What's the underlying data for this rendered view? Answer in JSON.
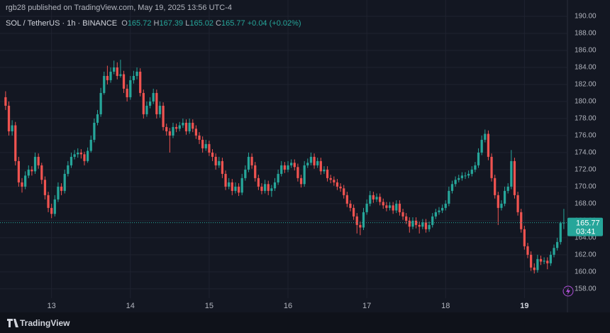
{
  "published": "rgb28 published on TradingView.com, May 19, 2025 13:56 UTC-4",
  "brand": "TradingView",
  "chart_data": {
    "type": "candlestick",
    "title": "SOL / TetherUS · 1h · BINANCE",
    "ohlc_keys": [
      "O",
      "H",
      "L",
      "C"
    ],
    "change": "+0.04 (+0.02%)",
    "countdown": "03:41",
    "up_color": "#26a69a",
    "down_color": "#ef5350",
    "grid": true,
    "xlim": [
      -1.7,
      171.1
    ],
    "xticks": [
      {
        "value": 14,
        "label": "13"
      },
      {
        "value": 38,
        "label": "14"
      },
      {
        "value": 62,
        "label": "15"
      },
      {
        "value": 86,
        "label": "16"
      },
      {
        "value": 110,
        "label": "17"
      },
      {
        "value": 134,
        "label": "18"
      },
      {
        "value": 158,
        "label": "19"
      }
    ],
    "ylim": [
      156.9,
      190.75
    ],
    "yticks": [
      {
        "value": 158,
        "label": "158.00"
      },
      {
        "value": 160,
        "label": "160.00"
      },
      {
        "value": 162,
        "label": "162.00"
      },
      {
        "value": 164,
        "label": "164.00"
      },
      {
        "value": 166,
        "label": "166.00"
      },
      {
        "value": 168,
        "label": "168.00"
      },
      {
        "value": 170,
        "label": "170.00"
      },
      {
        "value": 172,
        "label": "172.00"
      },
      {
        "value": 174,
        "label": "174.00"
      },
      {
        "value": 176,
        "label": "176.00"
      },
      {
        "value": 178,
        "label": "178.00"
      },
      {
        "value": 180,
        "label": "180.00"
      },
      {
        "value": 182,
        "label": "182.00"
      },
      {
        "value": 184,
        "label": "184.00"
      },
      {
        "value": 186,
        "label": "186.00"
      },
      {
        "value": 188,
        "label": "188.00"
      },
      {
        "value": 190,
        "label": "190.00"
      }
    ],
    "ohlc": [
      [
        180.5,
        181.2,
        179,
        179.5
      ],
      [
        179.5,
        180,
        176,
        176.5
      ],
      [
        176.5,
        177.8,
        176,
        177.2
      ],
      [
        177.2,
        177.6,
        172.5,
        173
      ],
      [
        173,
        173.5,
        170,
        170.5
      ],
      [
        170.5,
        171,
        169.3,
        170
      ],
      [
        170,
        171.8,
        169.7,
        171.3
      ],
      [
        171.3,
        172.5,
        171,
        172
      ],
      [
        172,
        172.4,
        171.3,
        171.8
      ],
      [
        171.8,
        174,
        171.5,
        173.5
      ],
      [
        173.5,
        173.9,
        172.1,
        172.5
      ],
      [
        172.5,
        172.8,
        170.3,
        170.8
      ],
      [
        170.8,
        171.2,
        168.5,
        169
      ],
      [
        169,
        169.4,
        167,
        167.5
      ],
      [
        167.5,
        168,
        166.3,
        166.8
      ],
      [
        166.8,
        169,
        166.5,
        168.5
      ],
      [
        168.5,
        170.5,
        168.2,
        170
      ],
      [
        170,
        170.4,
        169,
        169.5
      ],
      [
        169.5,
        172,
        169.2,
        171.5
      ],
      [
        171.5,
        173,
        171.2,
        172.5
      ],
      [
        172.5,
        174,
        172.2,
        173.5
      ],
      [
        173.5,
        174.3,
        173.2,
        173.8
      ],
      [
        173.8,
        174.5,
        173.4,
        174
      ],
      [
        174,
        174.4,
        173.3,
        173.8
      ],
      [
        173.8,
        174.1,
        172.5,
        173
      ],
      [
        173,
        174.6,
        172.8,
        174.2
      ],
      [
        174.2,
        176,
        174,
        175.5
      ],
      [
        175.5,
        178,
        175.2,
        177.5
      ],
      [
        177.5,
        179,
        177.2,
        178.5
      ],
      [
        178.5,
        181.6,
        178.2,
        181
      ],
      [
        181,
        183.5,
        180.8,
        183
      ],
      [
        183,
        184.2,
        182,
        182.5
      ],
      [
        182.5,
        184,
        182.2,
        183.5
      ],
      [
        183.5,
        184.8,
        183.2,
        184
      ],
      [
        184,
        184.6,
        182.6,
        183
      ],
      [
        183,
        184.9,
        182.8,
        183.2
      ],
      [
        183.2,
        183.6,
        181,
        181.5
      ],
      [
        181.5,
        182,
        180,
        180.5
      ],
      [
        180.5,
        183,
        180.2,
        182.5
      ],
      [
        182.5,
        183.6,
        182.1,
        183
      ],
      [
        183,
        184,
        182.6,
        183.5
      ],
      [
        183.5,
        183.9,
        180.6,
        181
      ],
      [
        181,
        181.4,
        178,
        178.5
      ],
      [
        178.5,
        180,
        178.2,
        179.5
      ],
      [
        179.5,
        180.5,
        179.2,
        180
      ],
      [
        180,
        181.5,
        179.7,
        181
      ],
      [
        181,
        181.4,
        178,
        178.5
      ],
      [
        178.5,
        180,
        178.1,
        179.5
      ],
      [
        179.5,
        179.9,
        176.6,
        177
      ],
      [
        177,
        177.4,
        176,
        176.5
      ],
      [
        176.5,
        176.9,
        174,
        176
      ],
      [
        176,
        177.5,
        175.7,
        177
      ],
      [
        177,
        177.4,
        176.4,
        176.8
      ],
      [
        176.8,
        177.6,
        176.5,
        177.2
      ],
      [
        177.2,
        178,
        176.9,
        177.5
      ],
      [
        177.5,
        177.9,
        176.1,
        176.5
      ],
      [
        176.5,
        178,
        176.2,
        177.5
      ],
      [
        177.5,
        177.9,
        176.4,
        176.8
      ],
      [
        176.8,
        177.2,
        175.6,
        176
      ],
      [
        176,
        176.4,
        175,
        175.5
      ],
      [
        175.5,
        175.9,
        174,
        174.5
      ],
      [
        174.5,
        175.5,
        174.2,
        175
      ],
      [
        175,
        175.4,
        173.6,
        174
      ],
      [
        174,
        174.4,
        173,
        173.5
      ],
      [
        173.5,
        173.9,
        172,
        172.5
      ],
      [
        172.5,
        173.5,
        172.2,
        173
      ],
      [
        173,
        173.4,
        171,
        171.5
      ],
      [
        171.5,
        171.9,
        169.6,
        170
      ],
      [
        170,
        171,
        169.7,
        170.5
      ],
      [
        170.5,
        170.9,
        169,
        169.5
      ],
      [
        169.5,
        170.5,
        169.2,
        170
      ],
      [
        170,
        170.4,
        168.9,
        169.3
      ],
      [
        169.3,
        171.5,
        169,
        171
      ],
      [
        171,
        172.5,
        170.7,
        172
      ],
      [
        172,
        174,
        171.7,
        173.5
      ],
      [
        173.5,
        173.9,
        172.1,
        172.5
      ],
      [
        172.5,
        172.9,
        170.6,
        171
      ],
      [
        171,
        171.4,
        169.6,
        170
      ],
      [
        170,
        170.4,
        169.1,
        169.5
      ],
      [
        169.5,
        170.8,
        169.2,
        170.3
      ],
      [
        170.3,
        170.7,
        169,
        169.5
      ],
      [
        169.5,
        170.2,
        168.8,
        169.8
      ],
      [
        169.8,
        171,
        169.5,
        170.5
      ],
      [
        170.5,
        172,
        170.2,
        171.5
      ],
      [
        171.5,
        173,
        171.2,
        172.5
      ],
      [
        172.5,
        172.9,
        171.6,
        172
      ],
      [
        172,
        173,
        171.7,
        172.5
      ],
      [
        172.5,
        173.2,
        172.2,
        172.8
      ],
      [
        172.8,
        173.2,
        171.9,
        172.3
      ],
      [
        172.3,
        172.7,
        170.6,
        171
      ],
      [
        171,
        171.4,
        169.9,
        170.3
      ],
      [
        170.3,
        173,
        170,
        172.5
      ],
      [
        172.5,
        173.3,
        172.2,
        172.8
      ],
      [
        172.8,
        174,
        172.5,
        173.5
      ],
      [
        173.5,
        173.9,
        172.1,
        172.5
      ],
      [
        172.5,
        173.4,
        172.2,
        173
      ],
      [
        173,
        173.4,
        171.4,
        171.8
      ],
      [
        171.8,
        172.4,
        171.5,
        172
      ],
      [
        172,
        172.4,
        170.6,
        171
      ],
      [
        171,
        171.4,
        170.4,
        170.8
      ],
      [
        170.8,
        171.2,
        170.1,
        170.5
      ],
      [
        170.5,
        170.9,
        169.6,
        170
      ],
      [
        170,
        170.4,
        169.4,
        169.8
      ],
      [
        169.8,
        170.2,
        168.6,
        169
      ],
      [
        169,
        169.4,
        167.6,
        168
      ],
      [
        168,
        168.4,
        167.1,
        167.5
      ],
      [
        167.5,
        167.9,
        166.1,
        166.5
      ],
      [
        166.5,
        166.9,
        164.5,
        165.5
      ],
      [
        165.5,
        165.9,
        164.3,
        165.2
      ],
      [
        165.2,
        167.5,
        164.9,
        167
      ],
      [
        167,
        168.5,
        166.7,
        168
      ],
      [
        168,
        169.5,
        167.7,
        169
      ],
      [
        169,
        169.4,
        168.1,
        168.5
      ],
      [
        168.5,
        169.2,
        168.2,
        168.8
      ],
      [
        168.8,
        169.2,
        167.8,
        168.2
      ],
      [
        168.2,
        168.6,
        167.4,
        167.8
      ],
      [
        167.8,
        168.2,
        167.1,
        167.5
      ],
      [
        167.5,
        168.2,
        167.2,
        167.8
      ],
      [
        167.8,
        168.2,
        166.8,
        167.2
      ],
      [
        167.2,
        168.4,
        166.9,
        168
      ],
      [
        168,
        168.4,
        166.6,
        167
      ],
      [
        167,
        167.4,
        166.1,
        166.5
      ],
      [
        166.5,
        166.9,
        165.6,
        166
      ],
      [
        166,
        166.4,
        164.6,
        165.3
      ],
      [
        165.3,
        166.4,
        165,
        166
      ],
      [
        166,
        166.4,
        165.1,
        165.5
      ],
      [
        165.5,
        165.9,
        164.5,
        165.3
      ],
      [
        165.3,
        166.2,
        165,
        165.8
      ],
      [
        165.8,
        166.2,
        164.6,
        165
      ],
      [
        165,
        165.9,
        164.7,
        165.5
      ],
      [
        165.5,
        166.9,
        165.2,
        166.5
      ],
      [
        166.5,
        167.4,
        166.2,
        167
      ],
      [
        167,
        167.6,
        166.7,
        167.2
      ],
      [
        167.2,
        167.9,
        166.9,
        167.5
      ],
      [
        167.5,
        168.4,
        167.2,
        168
      ],
      [
        168,
        170,
        167.7,
        169.5
      ],
      [
        169.5,
        170.7,
        169.2,
        170.3
      ],
      [
        170.3,
        171.2,
        170,
        170.8
      ],
      [
        170.8,
        171.4,
        170.5,
        171
      ],
      [
        171,
        171.7,
        170.7,
        171.3
      ],
      [
        171.3,
        171.7,
        170.9,
        171.3
      ],
      [
        171.3,
        171.9,
        171,
        171.5
      ],
      [
        171.5,
        172.4,
        171.2,
        172
      ],
      [
        172,
        172.9,
        171.7,
        172.5
      ],
      [
        172.5,
        174.5,
        172.2,
        174
      ],
      [
        174,
        176,
        173.7,
        175.5
      ],
      [
        175.5,
        176.7,
        175.2,
        176.2
      ],
      [
        176.2,
        176.6,
        173.1,
        173.5
      ],
      [
        173.5,
        173.9,
        170.6,
        171
      ],
      [
        171,
        171.4,
        168.6,
        169
      ],
      [
        169,
        169.4,
        165.5,
        167.5
      ],
      [
        167.5,
        168.4,
        167.2,
        168
      ],
      [
        168,
        170,
        167.7,
        169.5
      ],
      [
        169.5,
        170.4,
        169.2,
        170
      ],
      [
        170,
        174.3,
        169.7,
        173
      ],
      [
        173,
        173.4,
        168.6,
        169
      ],
      [
        169,
        169.4,
        166.6,
        167
      ],
      [
        167,
        167.4,
        164.6,
        165
      ],
      [
        165,
        165.4,
        162.6,
        163
      ],
      [
        163,
        163.4,
        161.6,
        162
      ],
      [
        162,
        162.4,
        160.1,
        160.5
      ],
      [
        160.5,
        161,
        159.8,
        160.2
      ],
      [
        160.2,
        162,
        159.9,
        161.5
      ],
      [
        161.5,
        161.9,
        160.8,
        161.2
      ],
      [
        161.2,
        161.7,
        160.9,
        161.3
      ],
      [
        161.3,
        161.7,
        160.3,
        161
      ],
      [
        161,
        162.4,
        160.7,
        162
      ],
      [
        162,
        163.2,
        161.7,
        162.8
      ],
      [
        162.8,
        164,
        162.5,
        163.5
      ],
      [
        163.5,
        165.9,
        163.2,
        165.72
      ],
      [
        165.72,
        167.39,
        165.02,
        165.77
      ]
    ]
  }
}
